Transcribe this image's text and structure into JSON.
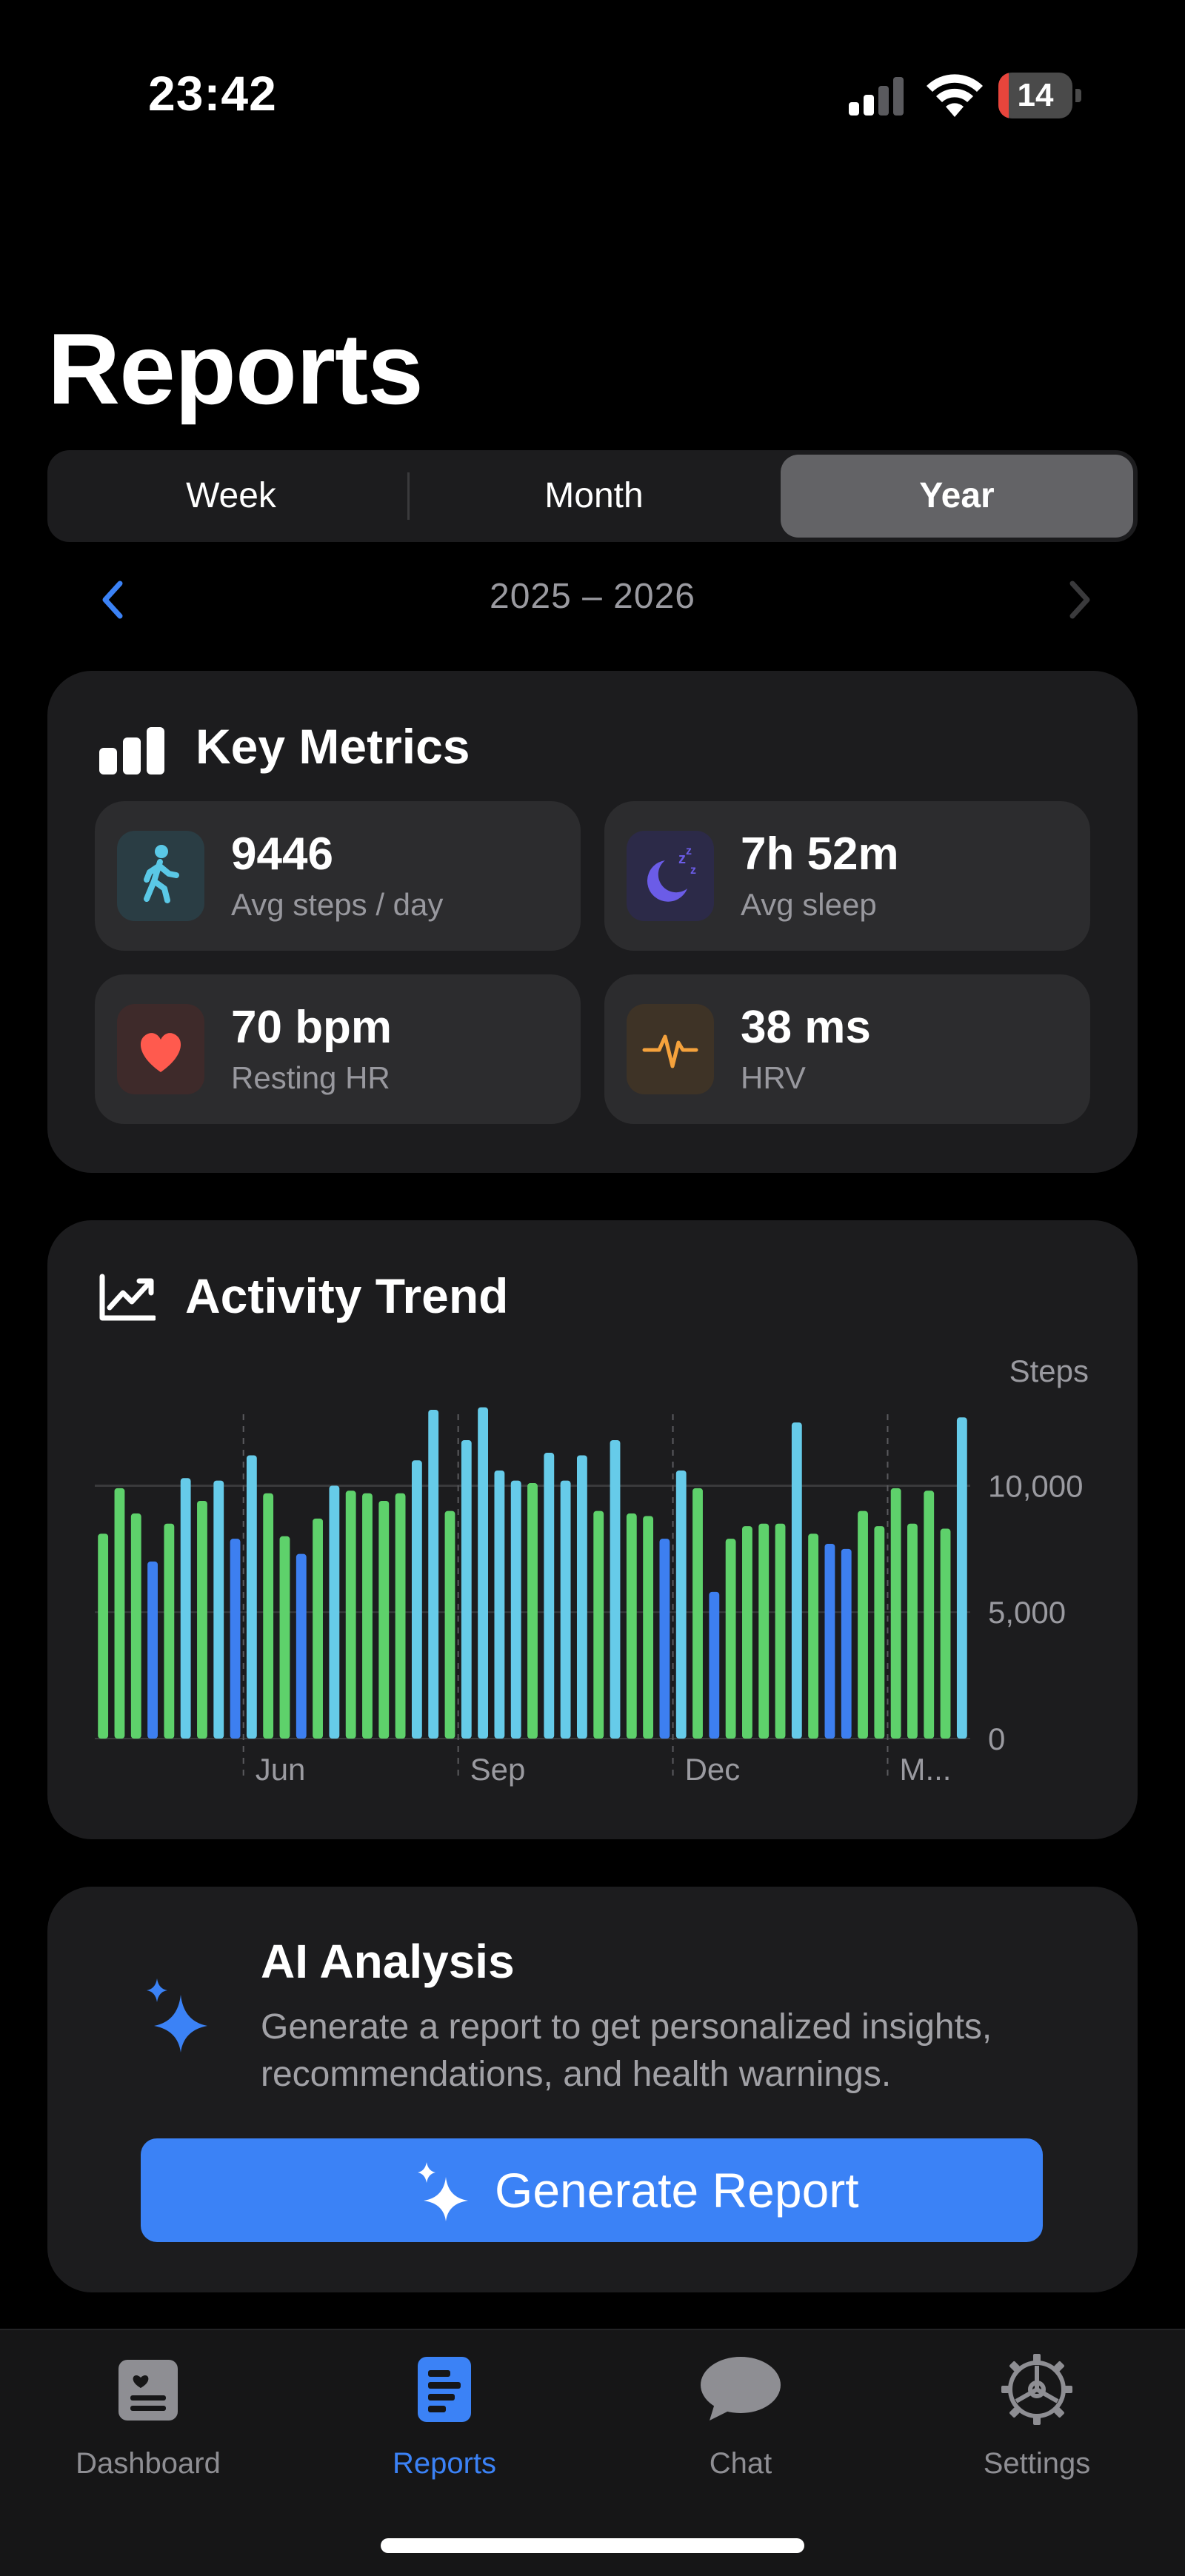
{
  "status_bar": {
    "time": "23:42",
    "battery": "14",
    "battery_level": 0.14
  },
  "page": {
    "title": "Reports"
  },
  "segments": {
    "items": [
      "Week",
      "Month",
      "Year"
    ],
    "selected": "Year"
  },
  "period": {
    "label": "2025 – 2026"
  },
  "key_metrics": {
    "title": "Key Metrics",
    "items": [
      {
        "value": "9446",
        "label": "Avg steps / day",
        "icon": "walking-icon",
        "color": "#5ac8e6"
      },
      {
        "value": "7h 52m",
        "label": "Avg sleep",
        "icon": "sleep-moon-icon",
        "color": "#6b5ce7"
      },
      {
        "value": "70 bpm",
        "label": "Resting HR",
        "icon": "heart-icon",
        "color": "#ff5a4e"
      },
      {
        "value": "38 ms",
        "label": "HRV",
        "icon": "heartbeat-pulse-icon",
        "color": "#f5a23c"
      }
    ]
  },
  "activity_trend": {
    "title": "Activity Trend",
    "colors": {
      "green": "#5ed16b",
      "cyan": "#66cbe9",
      "blue": "#3d7ff0"
    }
  },
  "chart_data": {
    "type": "bar",
    "ylabel": "Steps",
    "ylim": [
      0,
      13000
    ],
    "yticks": [
      "10,000",
      "5,000",
      "0"
    ],
    "ytick_values": [
      10000,
      5000,
      0
    ],
    "xticks": [
      "Jun",
      "Sep",
      "Dec",
      "M..."
    ],
    "xtick_after_bar": [
      9,
      22,
      35,
      48
    ],
    "values": [
      8100,
      9900,
      8900,
      7000,
      8500,
      10300,
      9400,
      10200,
      7900,
      11200,
      9700,
      8000,
      7300,
      8700,
      10000,
      9800,
      9700,
      9400,
      9700,
      11000,
      13000,
      9000,
      11800,
      13100,
      10600,
      10200,
      10100,
      11300,
      10200,
      11200,
      9000,
      11800,
      8900,
      8800,
      7900,
      10600,
      9900,
      5800,
      7900,
      8400,
      8500,
      8500,
      12500,
      8100,
      7700,
      7500,
      9000,
      8400,
      9900,
      8500,
      9800,
      8300,
      12700
    ],
    "bar_colors": [
      "green",
      "green",
      "green",
      "blue",
      "green",
      "cyan",
      "green",
      "cyan",
      "blue",
      "cyan",
      "green",
      "green",
      "blue",
      "green",
      "cyan",
      "green",
      "green",
      "green",
      "green",
      "cyan",
      "cyan",
      "green",
      "cyan",
      "cyan",
      "cyan",
      "cyan",
      "green",
      "cyan",
      "cyan",
      "cyan",
      "green",
      "cyan",
      "green",
      "green",
      "blue",
      "cyan",
      "green",
      "blue",
      "green",
      "green",
      "green",
      "green",
      "cyan",
      "green",
      "blue",
      "blue",
      "green",
      "green",
      "green",
      "green",
      "green",
      "green",
      "cyan"
    ],
    "grid": true
  },
  "ai_analysis": {
    "title": "AI Analysis",
    "description": "Generate a report to get personalized insights, recommendations, and health warnings.",
    "button_label": "Generate Report"
  },
  "tab_bar": {
    "items": [
      {
        "label": "Dashboard",
        "icon": "dashboard-icon"
      },
      {
        "label": "Reports",
        "icon": "reports-icon"
      },
      {
        "label": "Chat",
        "icon": "chat-bubble-icon"
      },
      {
        "label": "Settings",
        "icon": "settings-gear-icon"
      }
    ],
    "active": "Reports"
  },
  "accent": "#3b82f6"
}
